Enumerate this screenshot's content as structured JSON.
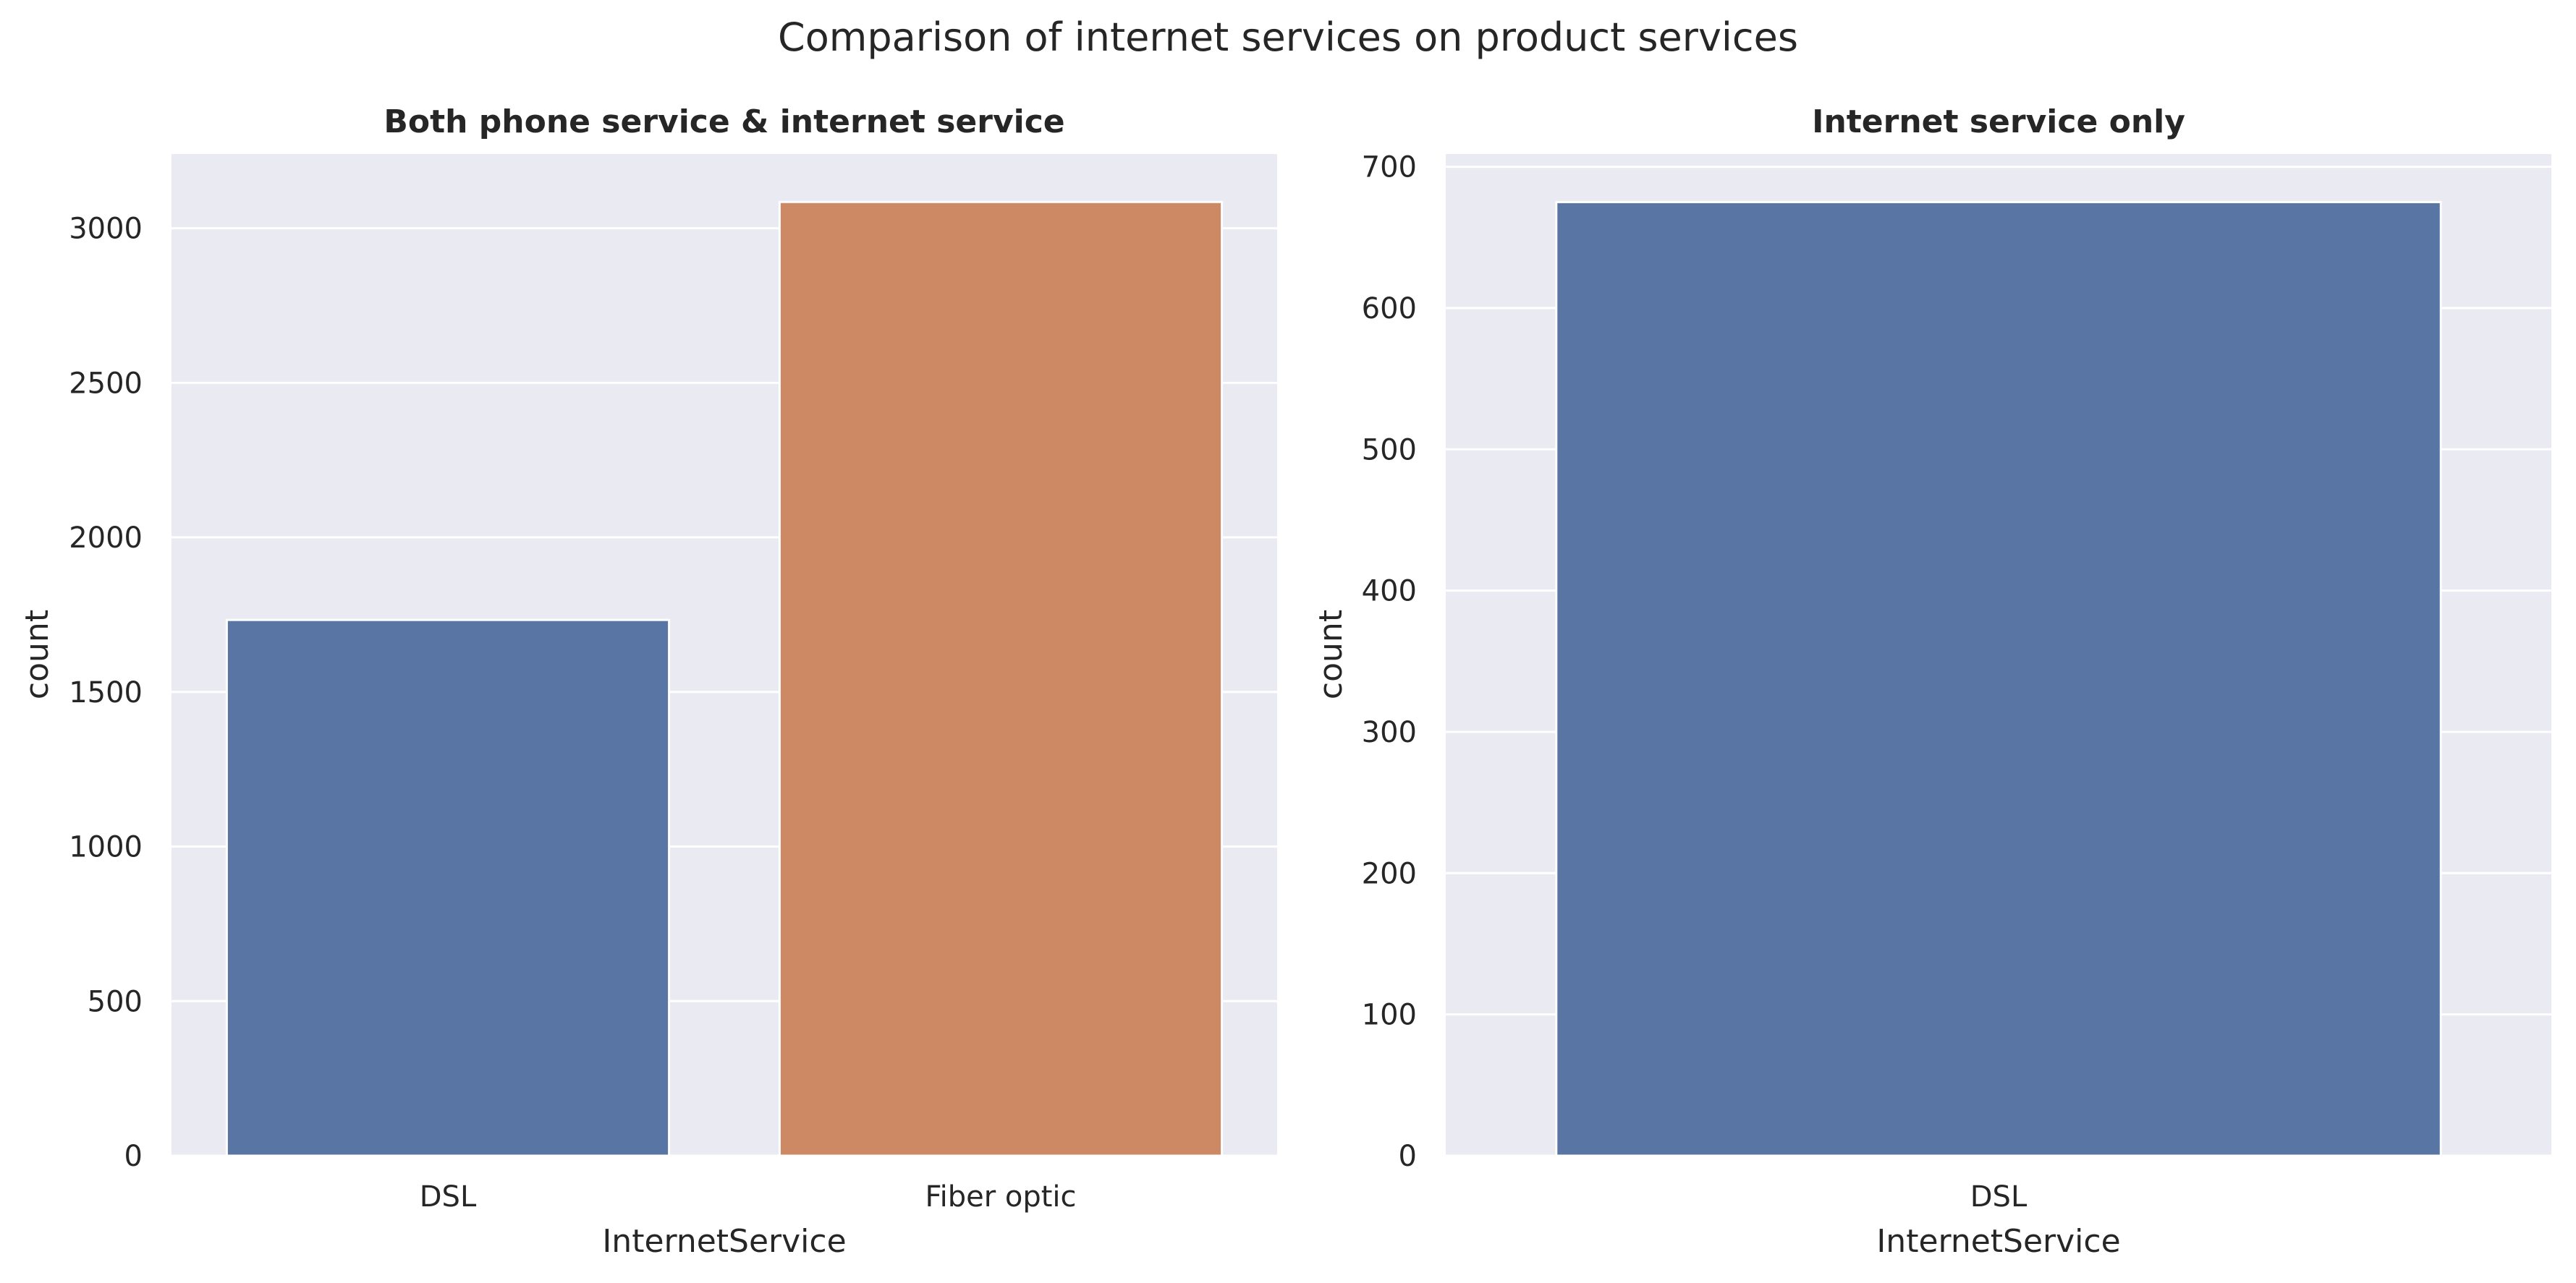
{
  "figure": {
    "title": "Comparison of internet services on product services"
  },
  "chart_data": [
    {
      "type": "bar",
      "title": "Both phone service & internet service",
      "xlabel": "InternetService",
      "ylabel": "count",
      "categories": [
        "DSL",
        "Fiber optic"
      ],
      "values": [
        1733,
        3085
      ],
      "colors": [
        "#5975a4",
        "#cc8963"
      ],
      "ylim": [
        0,
        3240
      ],
      "yticks": [
        0,
        500,
        1000,
        1500,
        2000,
        2500,
        3000
      ],
      "ytick_labels": [
        "0",
        "500",
        "1000",
        "1500",
        "2000",
        "2500",
        "3000"
      ],
      "grid": true,
      "background": "#eaeaf2"
    },
    {
      "type": "bar",
      "title": "Internet service only",
      "xlabel": "InternetService",
      "ylabel": "count",
      "categories": [
        "DSL"
      ],
      "values": [
        675
      ],
      "colors": [
        "#5975a4"
      ],
      "ylim": [
        0,
        709
      ],
      "yticks": [
        0,
        100,
        200,
        300,
        400,
        500,
        600,
        700
      ],
      "ytick_labels": [
        "0",
        "100",
        "200",
        "300",
        "400",
        "500",
        "600",
        "700"
      ],
      "grid": true,
      "background": "#eaeaf2"
    }
  ]
}
